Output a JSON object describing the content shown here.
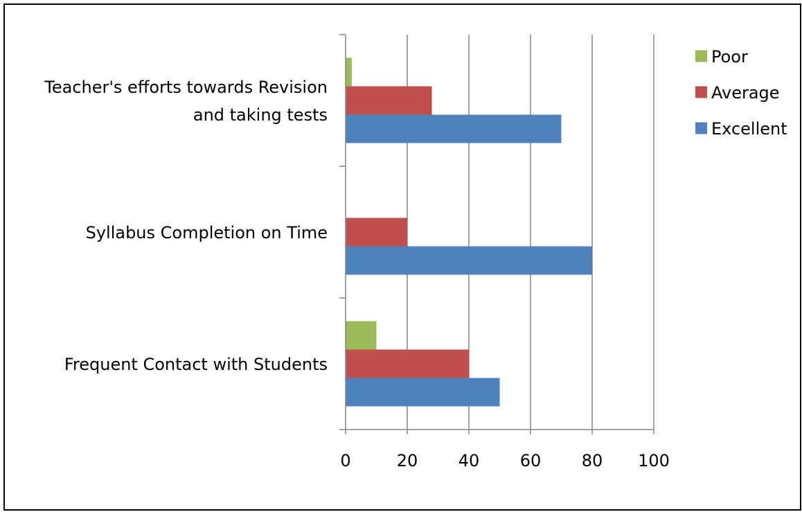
{
  "chart_data": {
    "type": "bar",
    "orientation": "horizontal",
    "title": "",
    "xlabel": "",
    "ylabel": "",
    "categories": [
      "Frequent Contact with Students",
      "Syllabus Completion on Time",
      "Teacher's efforts towards Revision and taking tests"
    ],
    "category_lines": [
      [
        "Frequent Contact with Students"
      ],
      [
        "Syllabus Completion on Time"
      ],
      [
        "Teacher's efforts towards Revision",
        "and taking tests"
      ]
    ],
    "series": [
      {
        "name": "Excellent",
        "values": [
          50,
          80,
          70
        ],
        "color": "#4F81BD"
      },
      {
        "name": "Average",
        "values": [
          40,
          20,
          28
        ],
        "color": "#C0504D"
      },
      {
        "name": "Poor",
        "values": [
          10,
          0,
          2
        ],
        "color": "#9BBB59"
      }
    ],
    "xlim": [
      0,
      100
    ],
    "xticks": [
      "0",
      "20",
      "40",
      "60",
      "80",
      "100"
    ],
    "grid": "vertical",
    "legend_position": "top-right",
    "legend_order": [
      "Poor",
      "Average",
      "Excellent"
    ]
  }
}
